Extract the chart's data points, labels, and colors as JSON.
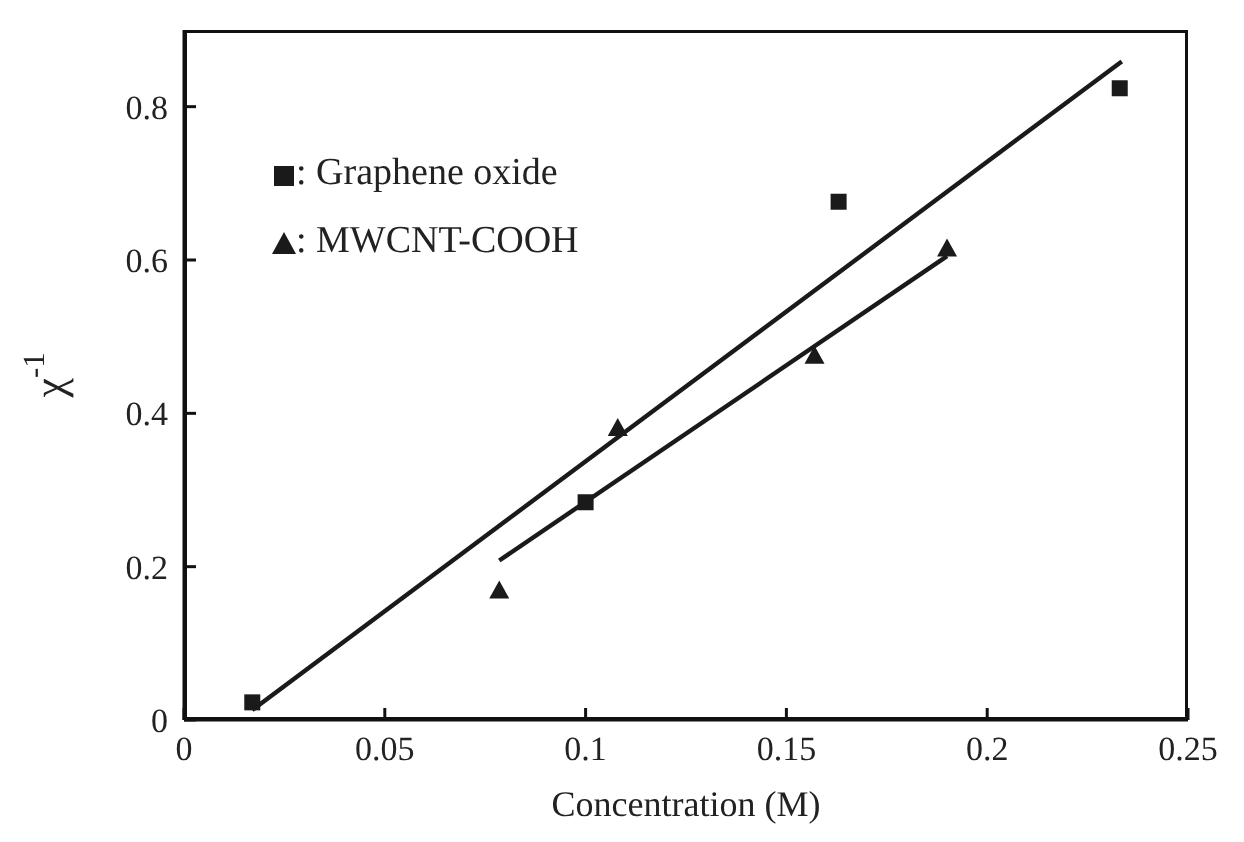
{
  "chart_data": {
    "type": "scatter",
    "xlabel": "Concentration (M)",
    "ylabel": "χ$^{-1}$",
    "xlim": [
      0,
      0.25
    ],
    "xticks": [
      0,
      0.05,
      0.1,
      0.15,
      0.2,
      0.25
    ],
    "ylim": [
      0,
      0.9
    ],
    "yticks": [
      0,
      0.2,
      0.4,
      0.6,
      0.8
    ],
    "grid": false,
    "legend": "top left",
    "series": [
      {
        "name": ": Graphene oxide",
        "marker": "square",
        "color": "#1a1a1a",
        "x": [
          0.017,
          0.1,
          0.163,
          0.233
        ],
        "values": [
          0.023,
          0.284,
          0.676,
          0.824
        ]
      },
      {
        "name": ": MWCNT-COOH",
        "marker": "triangle",
        "color": "#1a1a1a",
        "x": [
          0.0785,
          0.108,
          0.157,
          0.19
        ],
        "values": [
          0.169,
          0.381,
          0.475,
          0.615
        ]
      },
      {
        "type": "line",
        "marker": "none",
        "color": "#1a1a1a",
        "x": [
          0.017,
          0.2335
        ],
        "values": [
          0.013,
          0.859
        ]
      },
      {
        "type": "line",
        "marker": "none",
        "color": "#1a1a1a",
        "x": [
          0.0785,
          0.19
        ],
        "values": [
          0.208,
          0.605
        ]
      }
    ]
  }
}
